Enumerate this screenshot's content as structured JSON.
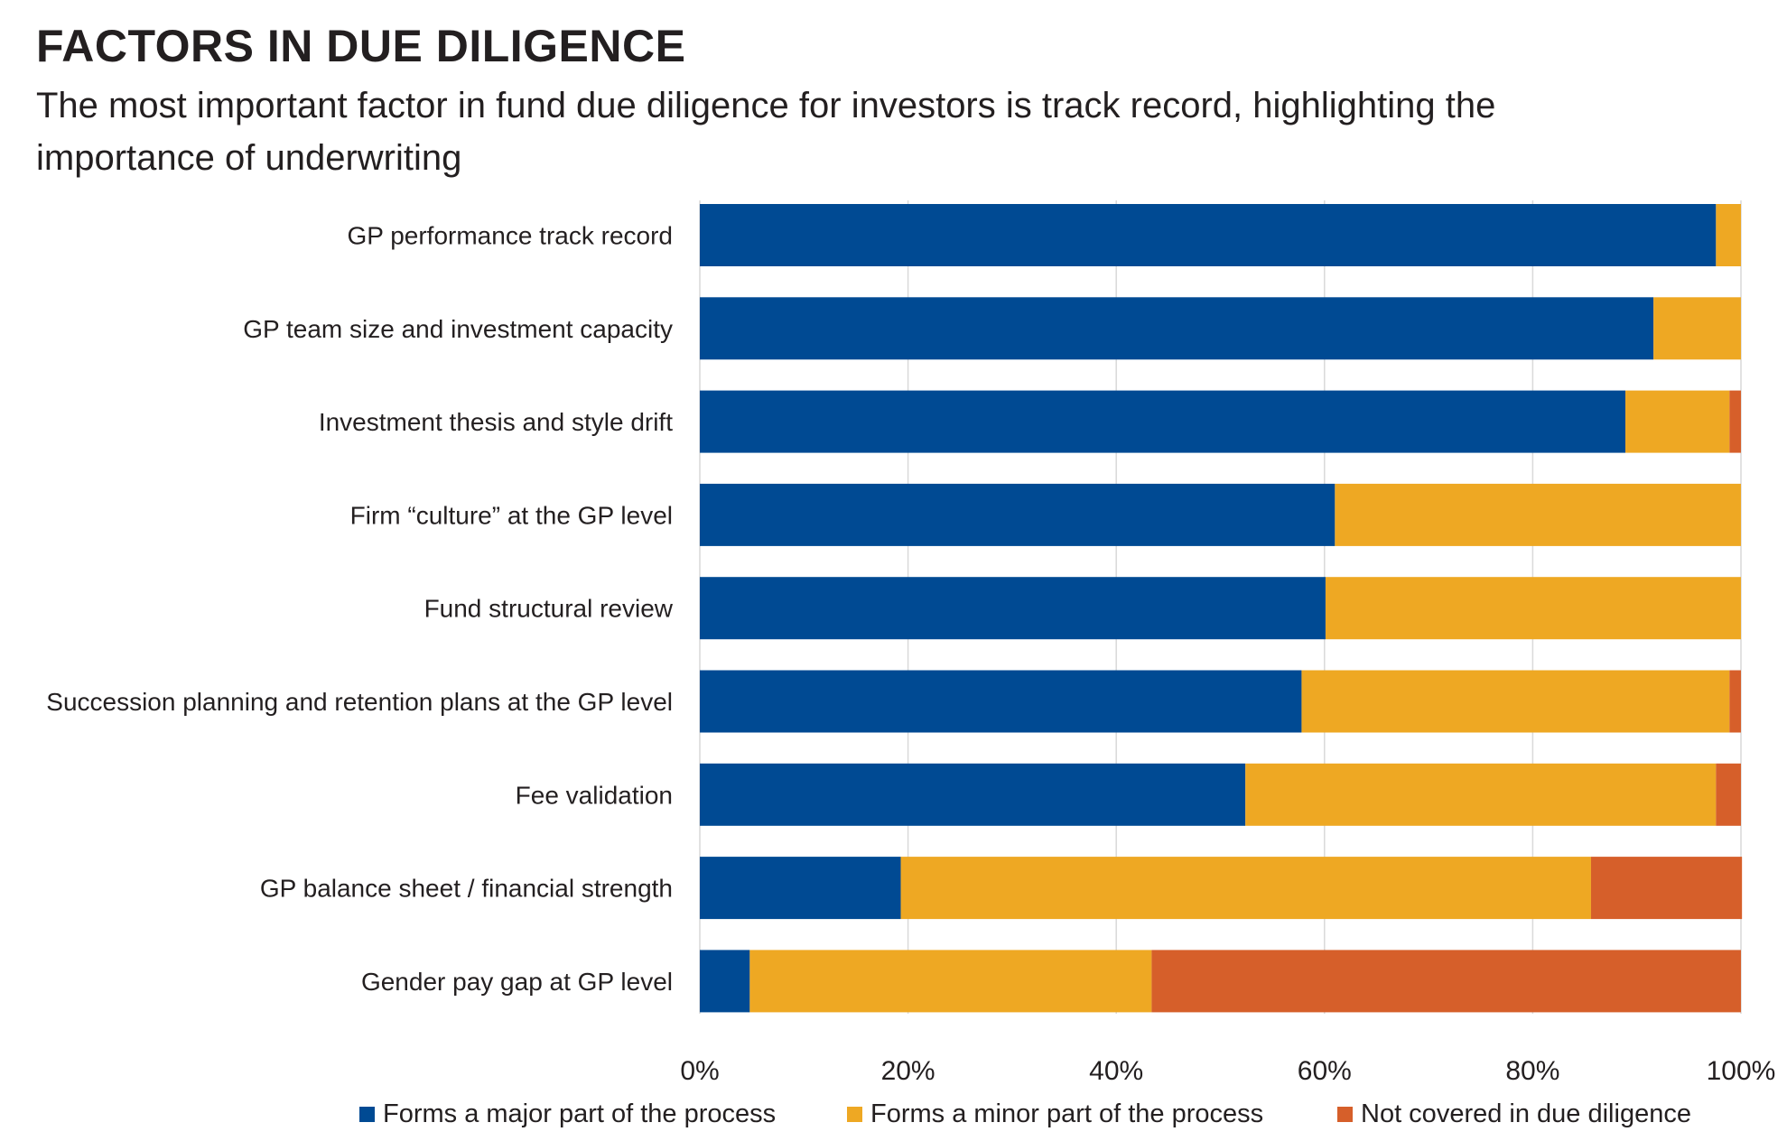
{
  "header": {
    "title": "FACTORS IN DUE DILIGENCE",
    "subtitle": "The most important factor in fund due diligence for investors is track record, highlighting the importance of underwriting"
  },
  "colors": {
    "major": "#004a93",
    "minor": "#eea823",
    "not_covered": "#d65f2a",
    "grid": "#d9d9d9"
  },
  "chart_data": {
    "type": "bar",
    "orientation": "horizontal",
    "stacked": true,
    "categories": [
      "GP performance track record",
      "GP team size and investment capacity",
      "Investment thesis and style drift",
      "Firm “culture” at the GP level",
      "Fund structural review",
      "Succession planning and retention plans at the GP level",
      "Fee validation",
      "GP balance sheet / financial strength",
      "Gender pay gap at GP level"
    ],
    "series": [
      {
        "name": "Forms a major part of the process",
        "values": [
          97.6,
          91.6,
          88.9,
          61.0,
          60.1,
          57.8,
          52.4,
          19.3,
          4.8
        ]
      },
      {
        "name": "Forms a minor part of the process",
        "values": [
          2.4,
          8.4,
          10.0,
          39.0,
          39.9,
          41.1,
          45.2,
          66.3,
          38.6
        ]
      },
      {
        "name": "Not covered in due diligence",
        "values": [
          0.0,
          0.0,
          1.1,
          0.0,
          0.0,
          1.1,
          2.4,
          14.5,
          56.6
        ]
      }
    ],
    "xlim": [
      0,
      100
    ],
    "ticks": [
      "0%",
      "20%",
      "40%",
      "60%",
      "80%",
      "100%"
    ],
    "tick_values": [
      0,
      20,
      40,
      60,
      80,
      100
    ],
    "grid": true,
    "legend_position": "bottom"
  }
}
